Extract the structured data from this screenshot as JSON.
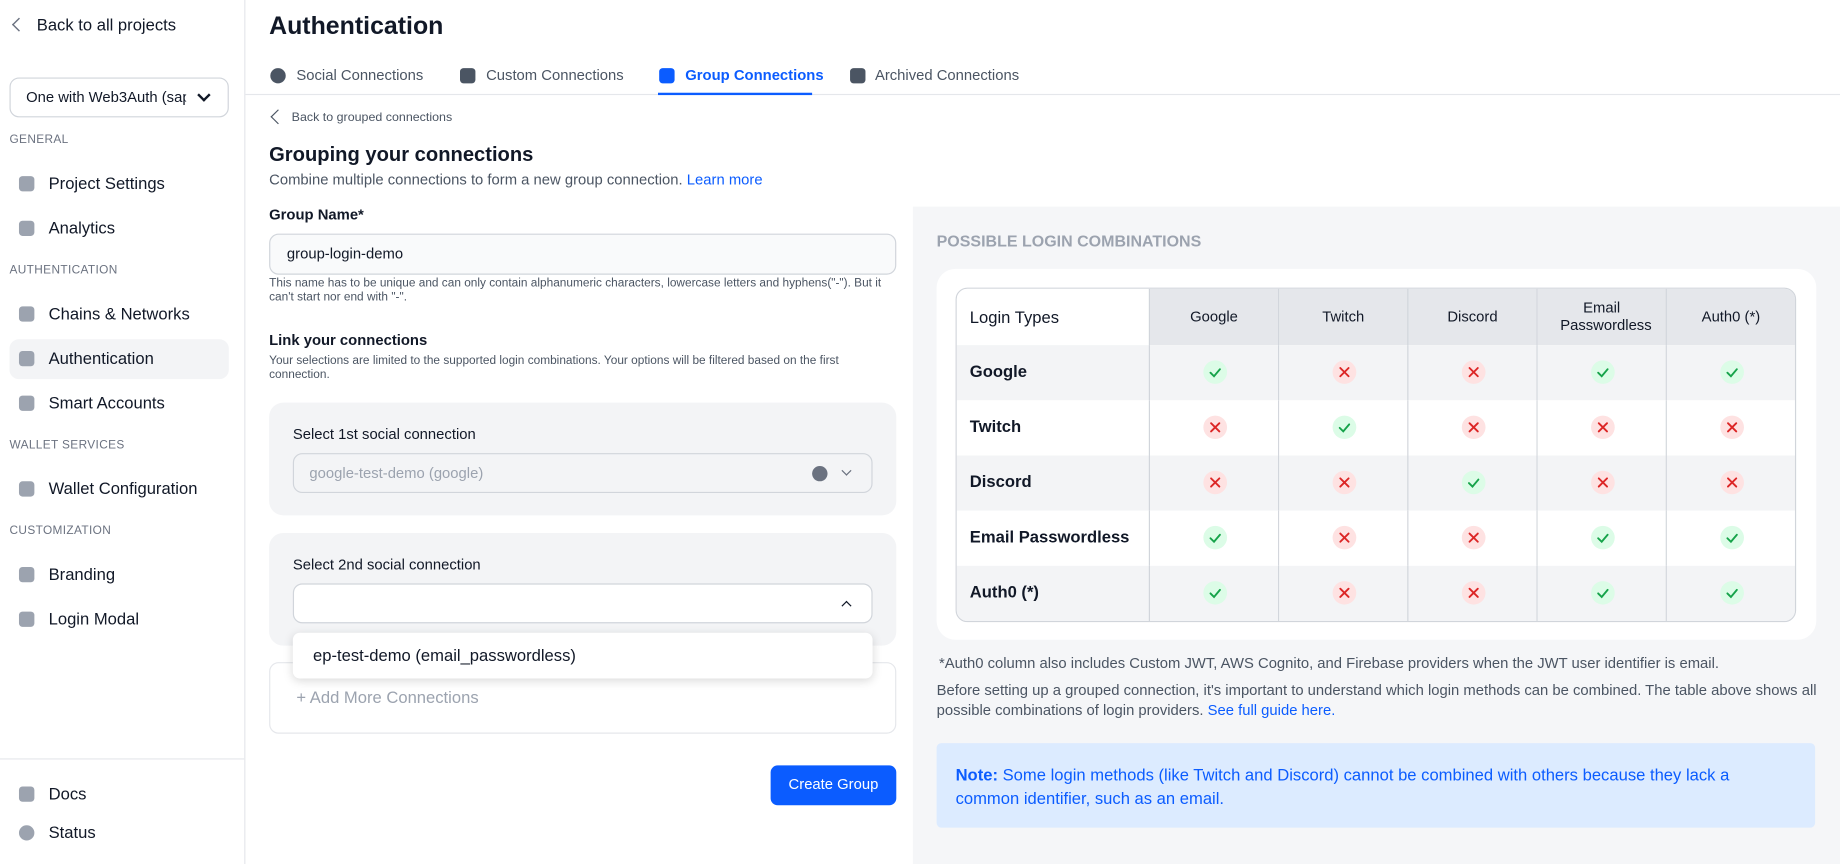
{
  "sidebar": {
    "back": "Back to all projects",
    "project": "One with Web3Auth (sap",
    "active_item": [
      1,
      1
    ],
    "sections": [
      {
        "label": "GENERAL",
        "items": [
          "Project Settings",
          "Analytics"
        ]
      },
      {
        "label": "AUTHENTICATION",
        "items": [
          "Chains & Networks",
          "Authentication",
          "Smart Accounts"
        ]
      },
      {
        "label": "WALLET SERVICES",
        "items": [
          "Wallet Configuration"
        ]
      },
      {
        "label": "CUSTOMIZATION",
        "items": [
          "Branding",
          "Login Modal"
        ]
      }
    ],
    "footer": [
      "Docs",
      "Status"
    ]
  },
  "header": {
    "title": "Authentication",
    "active_tab": 2,
    "tabs": [
      "Social Connections",
      "Custom Connections",
      "Group Connections",
      "Archived Connections"
    ]
  },
  "form": {
    "back": "Back to grouped connections",
    "title": "Grouping your connections",
    "description": "Combine multiple connections to form a new group connection.",
    "learn_more": "Learn more",
    "group_name_label": "Group Name*",
    "group_name_value": "group-login-demo",
    "group_name_help": "This name has to be unique and can only contain alphanumeric characters, lowercase letters and hyphens(\"-\"). But it can't start nor end with \"-\".",
    "link_title": "Link your connections",
    "link_help": "Your selections are limited to the supported login combinations. Your options will be filtered based on the first connection.",
    "select1_label": "Select 1st social connection",
    "select1_value": "google-test-demo (google)",
    "select2_label": "Select 2nd social connection",
    "dropdown_option": "ep-test-demo (email_passwordless)",
    "add_more": "+ Add More Connections",
    "submit": "Create Group"
  },
  "combinations": {
    "title": "POSSIBLE LOGIN COMBINATIONS",
    "corner": "Login Types",
    "columns": [
      "Google",
      "Twitch",
      "Discord",
      "Email Passwordless",
      "Auth0 (*)"
    ],
    "rows": [
      {
        "label": "Google",
        "cells": [
          true,
          false,
          false,
          true,
          true
        ]
      },
      {
        "label": "Twitch",
        "cells": [
          false,
          true,
          false,
          false,
          false
        ]
      },
      {
        "label": "Discord",
        "cells": [
          false,
          false,
          true,
          false,
          false
        ]
      },
      {
        "label": "Email Passwordless",
        "cells": [
          true,
          false,
          false,
          true,
          true
        ]
      },
      {
        "label": "Auth0 (*)",
        "cells": [
          true,
          false,
          false,
          true,
          true
        ]
      }
    ],
    "footnote": "*Auth0 column also includes Custom JWT, AWS Cognito, and Firebase providers when the JWT user identifier is email.",
    "explanation": "Before setting up a grouped connection, it's important to understand which login methods can be combined. The table above shows all possible combinations of login providers.",
    "guide_link": "See full guide here.",
    "note_label": "Note:",
    "note": "Some login methods (like Twitch and Discord) cannot be combined with others because they lack a common identifier, such as an email."
  }
}
